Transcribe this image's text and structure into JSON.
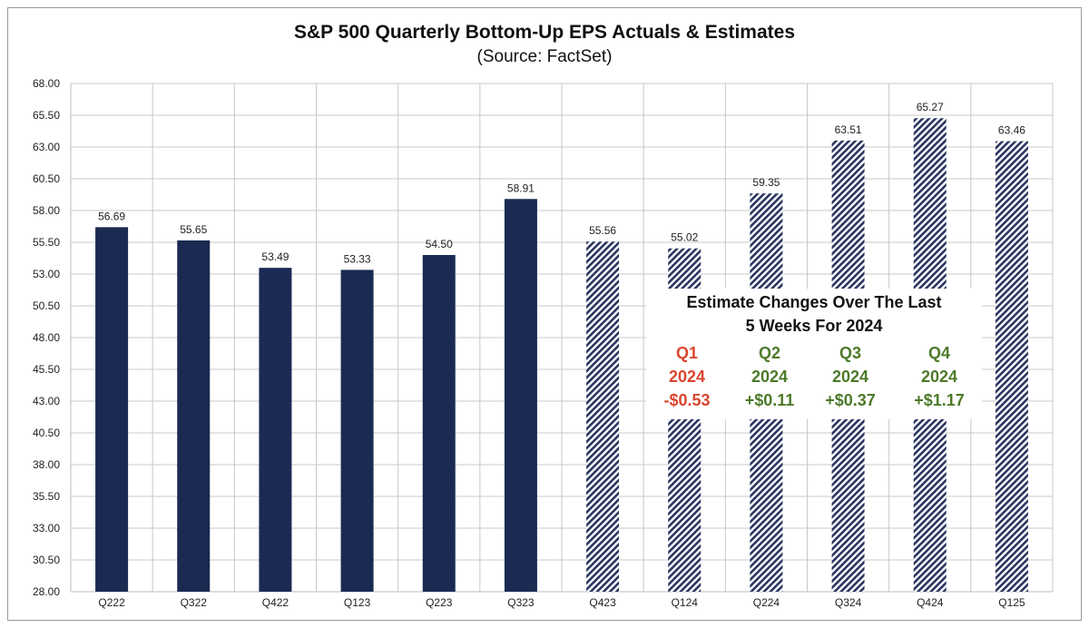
{
  "chart_data": {
    "type": "bar",
    "title": "S&P 500 Quarterly Bottom-Up EPS Actuals & Estimates",
    "subtitle": "(Source: FactSet)",
    "categories": [
      "Q222",
      "Q322",
      "Q422",
      "Q123",
      "Q223",
      "Q323",
      "Q423",
      "Q124",
      "Q224",
      "Q324",
      "Q424",
      "Q125"
    ],
    "values": [
      56.69,
      55.65,
      53.49,
      53.33,
      54.5,
      58.91,
      55.56,
      55.02,
      59.35,
      63.51,
      65.27,
      63.46
    ],
    "value_labels": [
      "56.69",
      "55.65",
      "53.49",
      "53.33",
      "54.50",
      "58.91",
      "55.56",
      "55.02",
      "59.35",
      "63.51",
      "65.27",
      "63.46"
    ],
    "bar_style": [
      "actual",
      "actual",
      "actual",
      "actual",
      "actual",
      "actual",
      "estimate",
      "estimate",
      "estimate",
      "estimate",
      "estimate",
      "estimate"
    ],
    "ylim": [
      28.0,
      68.0
    ],
    "yticks": [
      "28.00",
      "30.50",
      "33.00",
      "35.50",
      "38.00",
      "40.50",
      "43.00",
      "45.50",
      "48.00",
      "50.50",
      "53.00",
      "55.50",
      "58.00",
      "60.50",
      "63.00",
      "65.50",
      "68.00"
    ],
    "grid": true,
    "legend": "none",
    "colors": {
      "actual": "#1a2a52",
      "estimate": "#2a3560",
      "grid": "#c8c8c8",
      "negative": "#d9462f",
      "positive": "#4d7a2a"
    }
  },
  "annotation": {
    "title_line1": "Estimate Changes Over The Last",
    "title_line2": "5 Weeks For 2024",
    "quarters": [
      {
        "quarter": "Q1",
        "year": "2024",
        "change": "-$0.53",
        "sign": "negative"
      },
      {
        "quarter": "Q2",
        "year": "2024",
        "change": "+$0.11",
        "sign": "positive"
      },
      {
        "quarter": "Q3",
        "year": "2024",
        "change": "+$0.37",
        "sign": "positive"
      },
      {
        "quarter": "Q4",
        "year": "2024",
        "change": "+$1.17",
        "sign": "positive"
      }
    ]
  }
}
